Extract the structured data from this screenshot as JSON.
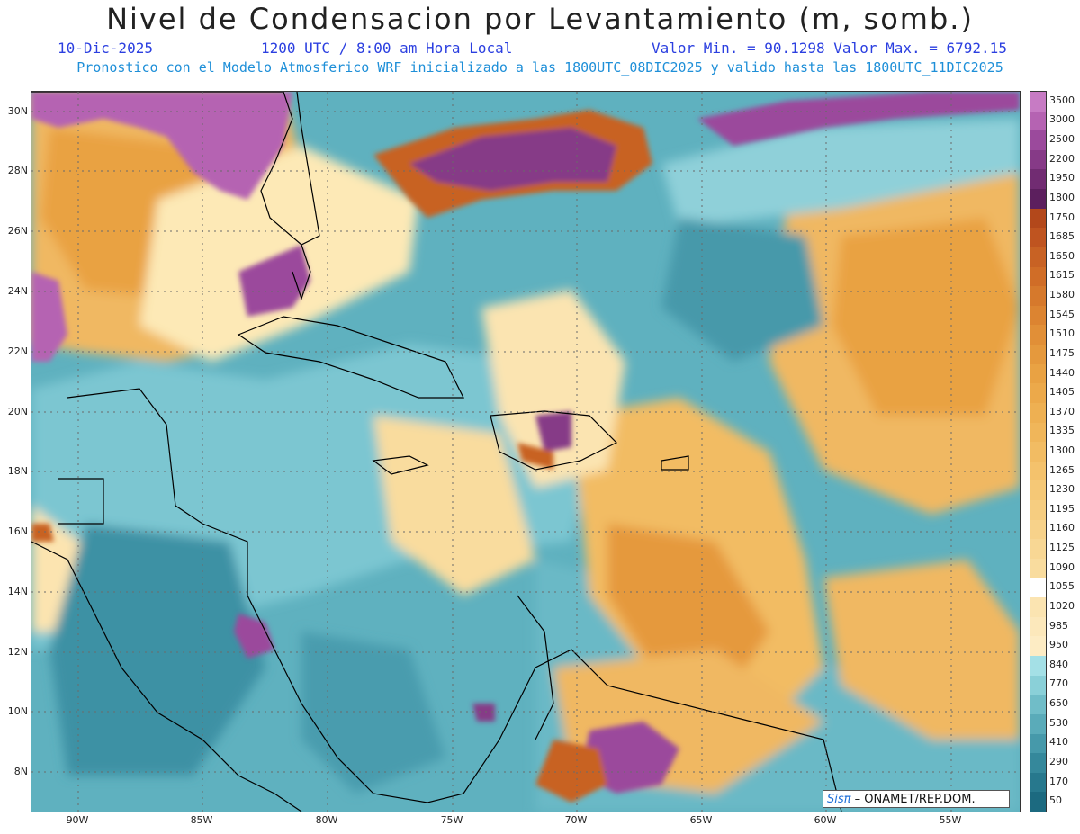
{
  "title": "Nivel de Condensacion por Levantamiento (m, somb.)",
  "date": "10-Dic-2025",
  "time": "1200 UTC / 8:00 am Hora Local",
  "minmax": "Valor Min. = 90.1298  Valor Max. = 6792.15",
  "subtitle": "Pronostico con el Modelo Atmosferico WRF inicializado a las 1800UTC_08DIC2025 y valido hasta las  1800UTC_11DIC2025",
  "lat_labels": [
    "30N",
    "28N",
    "26N",
    "24N",
    "22N",
    "20N",
    "18N",
    "16N",
    "14N",
    "12N",
    "10N",
    "8N"
  ],
  "lon_labels": [
    "90W",
    "85W",
    "80W",
    "75W",
    "70W",
    "65W",
    "60W",
    "55W"
  ],
  "colorbar": {
    "labels": [
      "3500",
      "3000",
      "2500",
      "2200",
      "1950",
      "1800",
      "1750",
      "1685",
      "1650",
      "1615",
      "1580",
      "1545",
      "1510",
      "1475",
      "1440",
      "1405",
      "1370",
      "1335",
      "1300",
      "1265",
      "1230",
      "1195",
      "1160",
      "1125",
      "1090",
      "1055",
      "1020",
      "985",
      "950",
      "840",
      "770",
      "650",
      "530",
      "410",
      "290",
      "170",
      "50"
    ],
    "colors": [
      "#c77bc4",
      "#b563b2",
      "#9b4a9c",
      "#863a87",
      "#712c72",
      "#5c1f5e",
      "#b3481b",
      "#bf5420",
      "#c86224",
      "#d06d27",
      "#d6792c",
      "#dc8431",
      "#e18f37",
      "#e5993d",
      "#e9a243",
      "#eca94a",
      "#eeb052",
      "#f0b65a",
      "#f2bc63",
      "#f4c26c",
      "#f5c876",
      "#f6cd80",
      "#f7d28a",
      "#f8d794",
      "#f9dc9e",
      "#faе0a8",
      "#fbe4b1",
      "#fce8bb",
      "#fdecc4",
      "#a4e0e6",
      "#8ad0d8",
      "#70bdc8",
      "#5aabb9",
      "#4699aa",
      "#35889b",
      "#27788d",
      "#1c6a80"
    ]
  },
  "credit": {
    "logo": "Sisπ",
    "text": "– ONAMET/REP.DOM."
  }
}
